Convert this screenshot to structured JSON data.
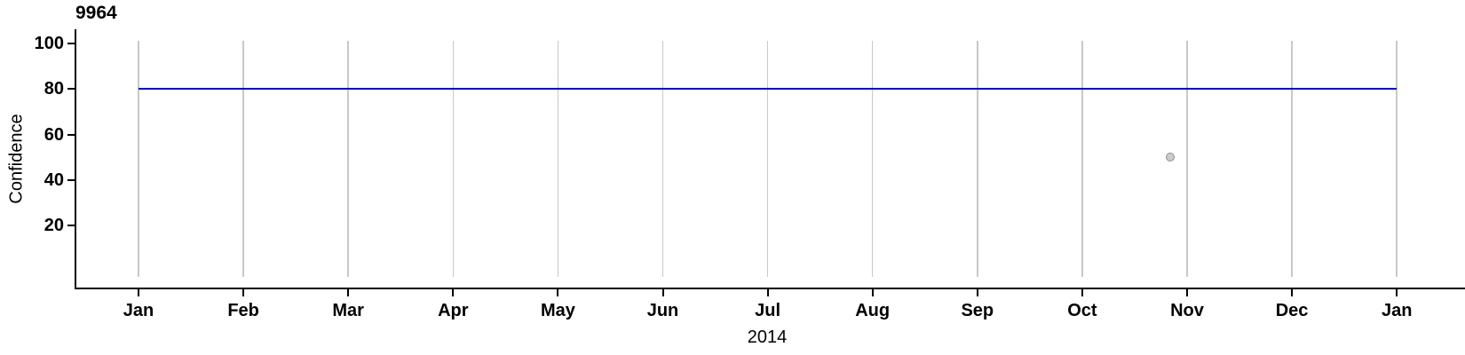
{
  "chart_data": {
    "type": "line",
    "title": "9964",
    "xlabel": "2014",
    "ylabel": "Confidence",
    "x_tick_labels": [
      "Jan",
      "Feb",
      "Mar",
      "Apr",
      "May",
      "Jun",
      "Jul",
      "Aug",
      "Sep",
      "Oct",
      "Nov",
      "Dec",
      "Jan"
    ],
    "y_ticks": [
      100,
      80,
      60,
      40,
      20
    ],
    "ylim": [
      -7.6,
      106.2
    ],
    "x_axis_year": "2014",
    "grid": {
      "show": true,
      "orientation": "vertical",
      "color": "#C8C8C8"
    },
    "axis_color": "#000000",
    "series": [
      {
        "name": "confidence-line",
        "type": "line",
        "color": "#0000CD",
        "points": [
          {
            "x_month_index": 0,
            "y": 80
          },
          {
            "x_month_index": 12,
            "y": 80
          }
        ]
      },
      {
        "name": "observation-point",
        "type": "scatter",
        "fill": "#CBCBCB",
        "stroke": "#8F8F8F",
        "approx_date": "2014-10-26",
        "points": [
          {
            "x_month_index": 9.84,
            "y": 50
          }
        ]
      }
    ]
  }
}
